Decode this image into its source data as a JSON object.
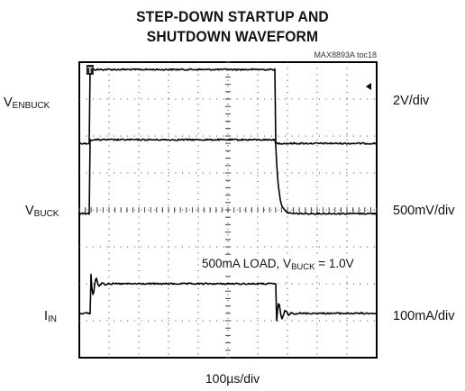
{
  "chart_data": {
    "type": "line",
    "title_line1": "STEP-DOWN STARTUP AND",
    "title_line2": "SHUTDOWN WAVEFORM",
    "doc_id": "MAX8893A toc18",
    "xlabel": "100µs/div",
    "grid": true,
    "x_divisions": 10,
    "y_divisions": 8,
    "trigger_marker": "T",
    "annotation": {
      "prefix": "500mA LOAD, V",
      "sub": "BUCK",
      "suffix": " = 1.0V"
    },
    "channels": [
      {
        "label_main": "V",
        "label_sub": "ENBUCK",
        "scale": "2V/div",
        "ground_div": 2.2,
        "high_div": 2.0,
        "on_div": 0.36,
        "off_div": 6.6
      },
      {
        "label_main": "V",
        "label_sub": "BUCK",
        "scale": "500mV/div",
        "ground_div": 4.1,
        "high_div": 2.0,
        "on_div": 0.36,
        "off_div": 6.6
      },
      {
        "label_main": "I",
        "label_sub": "IN",
        "scale": "100mA/div",
        "ground_div": 6.8,
        "high_div": 0.8,
        "on_div": 0.36,
        "off_div": 6.6
      }
    ]
  }
}
